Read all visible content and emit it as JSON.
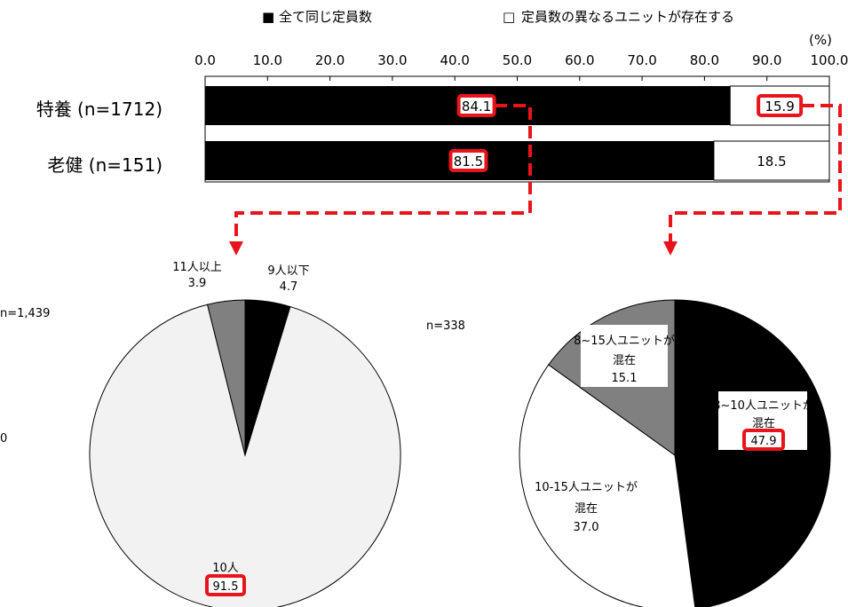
{
  "legend": [
    {
      "marker": "■",
      "label": "全て同じ定員数"
    },
    {
      "marker": "□",
      "label": "定員数の異なるユニットが存在する"
    }
  ],
  "colors": {
    "black": "#000000",
    "white": "#ffffff",
    "gray": "#808080",
    "lightgray": "#f2f2f2",
    "highlight": "#e8141b"
  },
  "chart_data": [
    {
      "type": "bar",
      "orientation": "horizontal-stacked",
      "unit_label": "(%)",
      "xlim": [
        0,
        100
      ],
      "ticks": [
        "0.0",
        "10.0",
        "20.0",
        "30.0",
        "40.0",
        "50.0",
        "60.0",
        "70.0",
        "80.0",
        "90.0",
        "100.0"
      ],
      "categories": [
        "特養 (n=1712)",
        "老健 (n=151)"
      ],
      "series": [
        {
          "name": "全て同じ定員数",
          "values": [
            84.1,
            81.5
          ],
          "labels": [
            "84.1",
            "81.5"
          ]
        },
        {
          "name": "定員数の異なるユニットが存在する",
          "values": [
            15.9,
            18.5
          ],
          "labels": [
            "15.9",
            "18.5"
          ]
        }
      ],
      "highlighted": [
        "84.1",
        "15.9",
        "81.5"
      ]
    },
    {
      "type": "pie",
      "n_label": "n=1,439",
      "slices": [
        {
          "label": "9人以下",
          "value": 4.7,
          "value_label": "4.7"
        },
        {
          "label": "10人",
          "value": 91.5,
          "value_label": "91.5"
        },
        {
          "label": "11人以上",
          "value": 3.9,
          "value_label": "3.9"
        }
      ],
      "highlighted": [
        "91.5"
      ]
    },
    {
      "type": "pie",
      "n_label": "n=338",
      "slices": [
        {
          "label": "8~10人ユニットが混在",
          "value": 47.9,
          "value_label": "47.9"
        },
        {
          "label": "10-15人ユニットが混在",
          "value": 37.0,
          "value_label": "37.0"
        },
        {
          "label": "8~15人ユニットが混在",
          "value": 15.1,
          "value_label": "15.1"
        }
      ],
      "highlighted": [
        "47.9"
      ]
    }
  ],
  "left_partial_label": "0"
}
